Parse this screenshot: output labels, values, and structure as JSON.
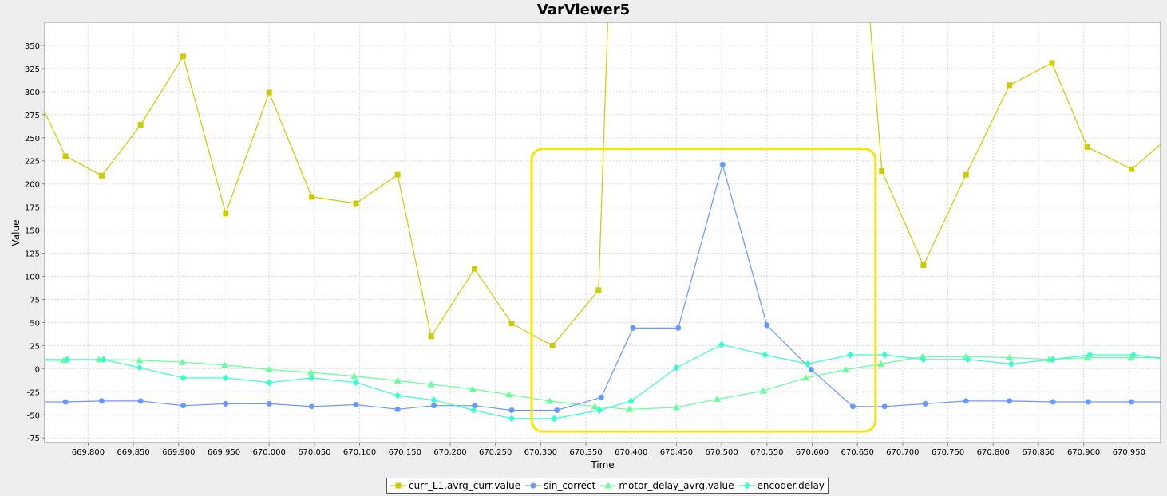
{
  "window": {
    "title": "VarViewer5"
  },
  "chart_data": {
    "type": "line",
    "title": "VarViewer5",
    "xlabel": "Time",
    "ylabel": "Value",
    "xlim": [
      669752,
      670985
    ],
    "ylim": [
      -80,
      375
    ],
    "grid": true,
    "legend_position": "bottom-center",
    "x_ticks": [
      669800,
      669850,
      669900,
      669950,
      670000,
      670050,
      670100,
      670150,
      670200,
      670250,
      670300,
      670350,
      670400,
      670450,
      670500,
      670550,
      670600,
      670650,
      670700,
      670750,
      670800,
      670850,
      670900,
      670950
    ],
    "x_tick_labels": [
      "669,800",
      "669,850",
      "669,900",
      "669,950",
      "670,000",
      "670,050",
      "670,100",
      "670,150",
      "670,200",
      "670,250",
      "670,300",
      "670,350",
      "670,400",
      "670,450",
      "670,500",
      "670,550",
      "670,600",
      "670,650",
      "670,700",
      "670,750",
      "670,800",
      "670,850",
      "670,900",
      "670,950"
    ],
    "y_ticks": [
      -75,
      -50,
      -25,
      0,
      25,
      50,
      75,
      100,
      125,
      150,
      175,
      200,
      225,
      250,
      275,
      300,
      325,
      350
    ],
    "y_tick_labels": [
      "-75",
      "-50",
      "-25",
      "0",
      "25",
      "50",
      "75",
      "100",
      "125",
      "150",
      "175",
      "200",
      "225",
      "250",
      "275",
      "300",
      "325",
      "350"
    ],
    "highlight_box": {
      "x_range": [
        670290,
        670670
      ],
      "y_range": [
        -68,
        238
      ],
      "color": "#f5e60a"
    },
    "series": [
      {
        "name": "curr_L1.avrg_curr.value",
        "color": "#cccc00",
        "marker": "square",
        "x": [
          669752,
          669775,
          669815,
          669858,
          669905,
          669952,
          670000,
          670047,
          670096,
          670142,
          670179,
          670227,
          670268,
          670313,
          670364,
          670375,
          670662,
          670677,
          670723,
          670770,
          670818,
          670865,
          670904,
          670953,
          670985
        ],
        "y": [
          278,
          230,
          209,
          264,
          338,
          168,
          299,
          186,
          179,
          210,
          35,
          108,
          49,
          25,
          85,
          400,
          400,
          214,
          112,
          210,
          307,
          331,
          240,
          216,
          243
        ],
        "markers": [
          false,
          true,
          true,
          true,
          true,
          true,
          true,
          true,
          true,
          true,
          true,
          true,
          true,
          true,
          true,
          false,
          false,
          true,
          true,
          true,
          true,
          true,
          true,
          true,
          false
        ]
      },
      {
        "name": "sin_correct",
        "color": "#6699ff",
        "marker": "circle",
        "x": [
          669752,
          669775,
          669815,
          669858,
          669905,
          669952,
          670000,
          670047,
          670096,
          670142,
          670182,
          670227,
          670268,
          670318,
          670367,
          670402,
          670452,
          670501,
          670550,
          670599,
          670645,
          670680,
          670725,
          670770,
          670818,
          670866,
          670905,
          670953,
          670985
        ],
        "y": [
          -36,
          -36,
          -35,
          -35,
          -40,
          -38,
          -38,
          -41,
          -39,
          -44,
          -40,
          -40,
          -45,
          -45,
          -31,
          44,
          44,
          221,
          47,
          -1,
          -41,
          -41,
          -38,
          -35,
          -35,
          -36,
          -36,
          -36,
          -36
        ],
        "markers": [
          false,
          true,
          true,
          true,
          true,
          true,
          true,
          true,
          true,
          true,
          true,
          true,
          true,
          true,
          true,
          true,
          true,
          true,
          true,
          true,
          true,
          true,
          true,
          true,
          true,
          true,
          true,
          true,
          false
        ]
      },
      {
        "name": "motor_delay_avrg.value",
        "color": "#66ff99",
        "marker": "triangle",
        "x": [
          669752,
          669773,
          669812,
          669857,
          669904,
          669951,
          670000,
          670046,
          670094,
          670142,
          670179,
          670225,
          670265,
          670310,
          670360,
          670398,
          670450,
          670495,
          670546,
          670593,
          670637,
          670676,
          670722,
          670770,
          670818,
          670862,
          670904,
          670952,
          670985
        ],
        "y": [
          9,
          9,
          10,
          9,
          7,
          4,
          -1,
          -4,
          -8,
          -13,
          -17,
          -22,
          -28,
          -35,
          -41,
          -44,
          -42,
          -33,
          -24,
          -10,
          -1,
          5,
          13,
          13,
          12,
          10,
          12,
          12,
          12
        ],
        "markers": [
          false,
          true,
          true,
          true,
          true,
          true,
          true,
          true,
          true,
          true,
          true,
          true,
          true,
          true,
          true,
          true,
          true,
          true,
          true,
          true,
          true,
          true,
          true,
          true,
          true,
          true,
          true,
          true,
          false
        ]
      },
      {
        "name": "encoder.delay",
        "color": "#33ffcc",
        "marker": "diamond",
        "x": [
          669752,
          669777,
          669817,
          669857,
          669905,
          669952,
          670000,
          670047,
          670096,
          670142,
          670182,
          670226,
          670268,
          670315,
          670365,
          670400,
          670450,
          670500,
          670548,
          670595,
          670642,
          670680,
          670723,
          670772,
          670820,
          670866,
          670907,
          670955,
          670985
        ],
        "y": [
          10,
          10,
          10,
          1,
          -10,
          -10,
          -15,
          -10,
          -15,
          -29,
          -34,
          -45,
          -54,
          -54,
          -45,
          -35,
          1,
          26,
          15,
          5,
          15,
          15,
          10,
          10,
          5,
          10,
          15,
          15,
          11
        ],
        "markers": [
          false,
          true,
          true,
          true,
          true,
          true,
          true,
          true,
          true,
          true,
          true,
          true,
          true,
          true,
          true,
          true,
          true,
          true,
          true,
          true,
          true,
          true,
          true,
          true,
          true,
          true,
          true,
          true,
          false
        ]
      }
    ]
  }
}
